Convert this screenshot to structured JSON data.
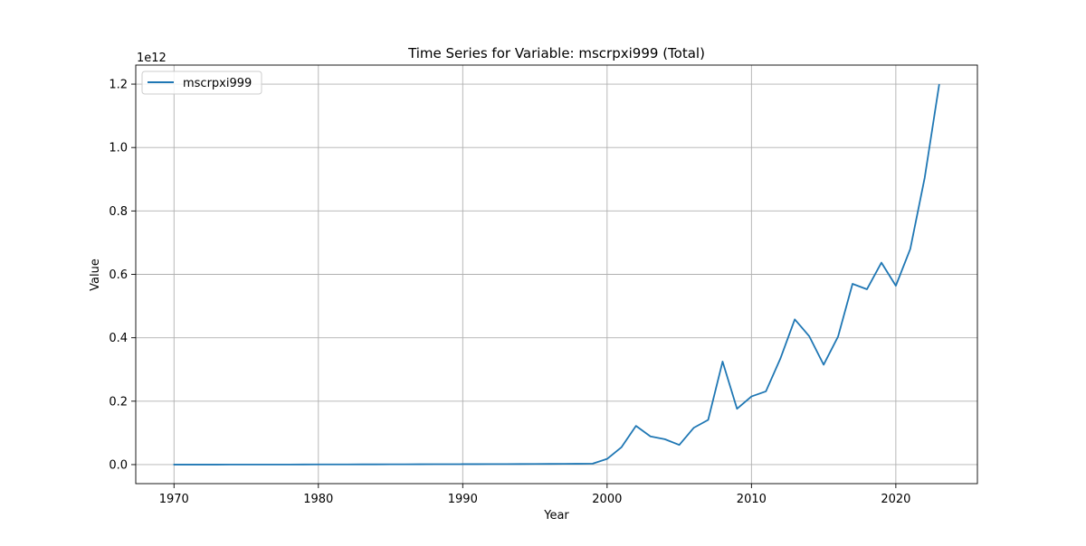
{
  "chart_data": {
    "type": "line",
    "title": "Time Series for Variable: mscrpxi999 (Total)",
    "xlabel": "Year",
    "ylabel": "Value",
    "y_offset_label": "1e12",
    "xlim": [
      1967.35,
      2025.65
    ],
    "ylim": [
      -0.06,
      1.26
    ],
    "y_scale": 1000000000000,
    "xticks": [
      1970,
      1980,
      1990,
      2000,
      2010,
      2020
    ],
    "xtick_labels": [
      "1970",
      "1980",
      "1990",
      "2000",
      "2010",
      "2020"
    ],
    "yticks": [
      0.0,
      0.2,
      0.4,
      0.6,
      0.8,
      1.0,
      1.2
    ],
    "ytick_labels": [
      "0.0",
      "0.2",
      "0.4",
      "0.6",
      "0.8",
      "1.0",
      "1.2"
    ],
    "grid": true,
    "legend": {
      "position": "upper-left",
      "entries": [
        "mscrpxi999"
      ]
    },
    "colors": {
      "series": "#1f77b4",
      "grid": "#b0b0b0",
      "frame": "#000000"
    },
    "series": [
      {
        "name": "mscrpxi999",
        "x": [
          1970,
          1971,
          1972,
          1973,
          1974,
          1975,
          1976,
          1977,
          1978,
          1979,
          1980,
          1981,
          1982,
          1983,
          1984,
          1985,
          1986,
          1987,
          1988,
          1989,
          1990,
          1991,
          1992,
          1993,
          1994,
          1995,
          1996,
          1997,
          1998,
          1999,
          2000,
          2001,
          2002,
          2003,
          2004,
          2005,
          2006,
          2007,
          2008,
          2009,
          2010,
          2011,
          2012,
          2013,
          2014,
          2015,
          2016,
          2017,
          2018,
          2019,
          2020,
          2021,
          2022,
          2023
        ],
        "y": [
          0.0001,
          0.0001,
          0.0001,
          0.0001,
          0.0002,
          0.0002,
          0.0002,
          0.0003,
          0.0003,
          0.0004,
          0.0005,
          0.0005,
          0.0006,
          0.0007,
          0.0008,
          0.0009,
          0.001,
          0.0011,
          0.0012,
          0.0013,
          0.0014,
          0.0015,
          0.0016,
          0.0017,
          0.0018,
          0.002,
          0.0022,
          0.0024,
          0.0026,
          0.003,
          0.018,
          0.055,
          0.122,
          0.089,
          0.08,
          0.062,
          0.116,
          0.141,
          0.325,
          0.176,
          0.215,
          0.231,
          0.334,
          0.458,
          0.405,
          0.315,
          0.404,
          0.57,
          0.553,
          0.637,
          0.564,
          0.68,
          0.905,
          1.198
        ]
      }
    ]
  }
}
